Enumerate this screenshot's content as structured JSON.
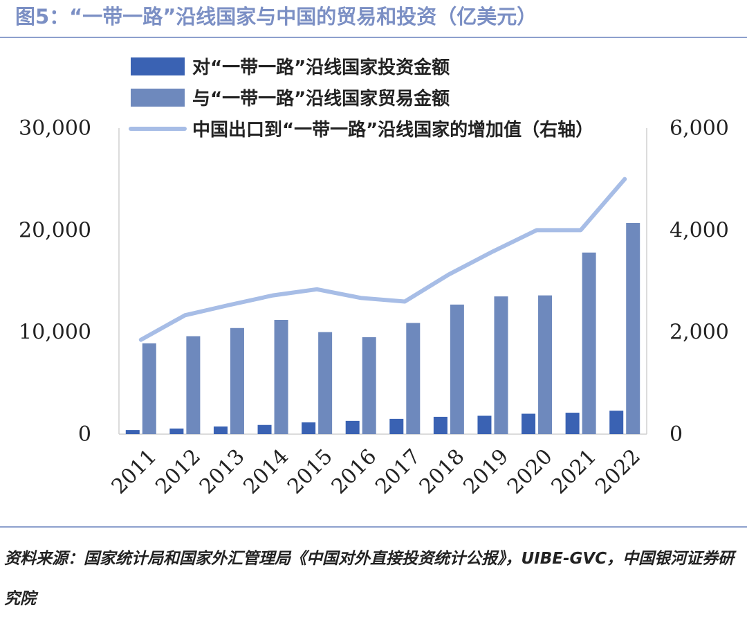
{
  "title": "图5：“一带一路”沿线国家与中国的贸易和投资（亿美元）",
  "source": "资料来源：国家统计局和国家外汇管理局《中国对外直接投资统计公报》，UIBE-GVC，中国银河证券研究院",
  "colors": {
    "investment": "#3a62b3",
    "trade": "#6e89bd",
    "value_added": "#a7bde6"
  },
  "chart_data": {
    "type": "bar",
    "categories": [
      "2011",
      "2012",
      "2013",
      "2014",
      "2015",
      "2016",
      "2017",
      "2018",
      "2019",
      "2020",
      "2021",
      "2022"
    ],
    "series": [
      {
        "name": "对“一带一路”沿线国家投资金额",
        "type": "bar",
        "axis": "left",
        "values": [
          400,
          550,
          750,
          900,
          1150,
          1300,
          1500,
          1700,
          1800,
          2000,
          2100,
          2300
        ]
      },
      {
        "name": "与“一带一路”沿线国家贸易金额",
        "type": "bar",
        "axis": "left",
        "values": [
          8900,
          9600,
          10400,
          11200,
          10000,
          9500,
          10900,
          12700,
          13500,
          13600,
          17800,
          20700
        ]
      },
      {
        "name": "中国出口到“一带一路”沿线国家的增加值（右轴）",
        "type": "line",
        "axis": "right",
        "values": [
          1850,
          2330,
          2530,
          2720,
          2840,
          2670,
          2600,
          3130,
          3580,
          4000,
          4000,
          5000
        ]
      }
    ],
    "y_left": {
      "ylim": [
        0,
        30000
      ],
      "ticks": [
        "0",
        "10,000",
        "20,000",
        "30,000"
      ],
      "tick_values": [
        0,
        10000,
        20000,
        30000
      ]
    },
    "y_right": {
      "ylim": [
        0,
        6000
      ],
      "ticks": [
        "0",
        "2,000",
        "4,000",
        "6,000"
      ],
      "tick_values": [
        0,
        2000,
        4000,
        6000
      ]
    },
    "legend": "top",
    "grid": false
  }
}
